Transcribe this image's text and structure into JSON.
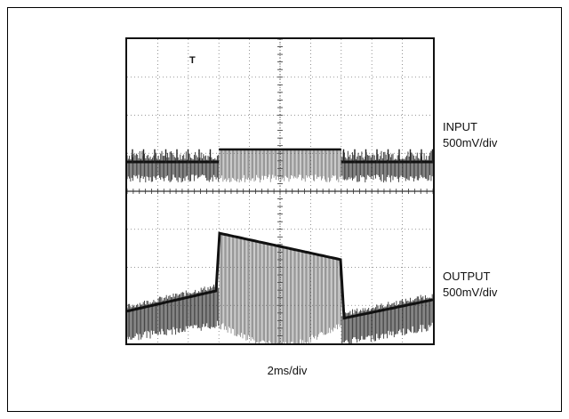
{
  "chart_data": {
    "type": "line",
    "title": "",
    "grid": true,
    "divisions": {
      "x": 10,
      "y": 8
    },
    "xlabel": "2ms/div",
    "trigger_marker": "T",
    "channels": [
      {
        "name": "INPUT",
        "scale": "500mV/div",
        "baseline_div": 1.15,
        "ripple_div": 0.35,
        "step": {
          "start_div": 3.0,
          "end_div": 7.0,
          "top_div": 3.05
        }
      },
      {
        "name": "OUTPUT",
        "scale": "500mV/div",
        "baseline_div": 5.65,
        "ripple_div": 0.25,
        "step": {
          "start_div": 3.0,
          "end_div": 7.0,
          "peak_div": 5.55,
          "decay_div": 4.85
        }
      }
    ]
  }
}
